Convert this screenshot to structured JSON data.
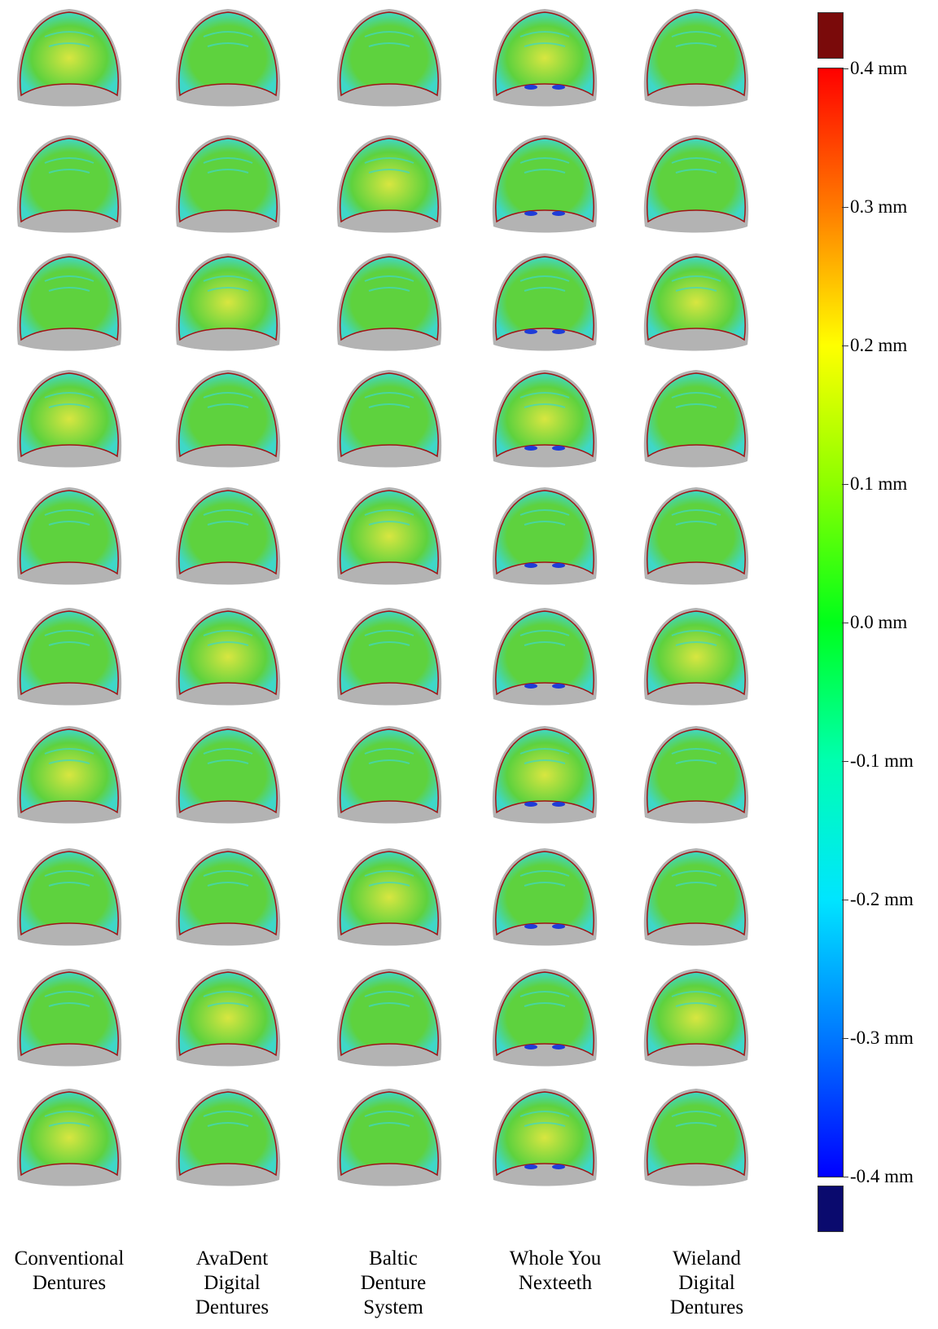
{
  "columns": [
    {
      "lines": [
        "Conventional",
        "Dentures"
      ]
    },
    {
      "lines": [
        "AvaDent",
        "Digital",
        "Dentures"
      ]
    },
    {
      "lines": [
        "Baltic",
        "Denture",
        "System"
      ]
    },
    {
      "lines": [
        "Whole You",
        "Nexteeth"
      ]
    },
    {
      "lines": [
        "Wieland",
        "Digital",
        "Dentures"
      ]
    }
  ],
  "rows": 10,
  "scale": {
    "ticks": [
      "0.4 mm",
      "0.3 mm",
      "0.2 mm",
      "0.1 mm",
      "0.0 mm",
      "-0.1 mm",
      "-0.2 mm",
      "-0.3 mm",
      "-0.4 mm"
    ],
    "over_color": "#7a0a0a",
    "under_color": "#0a0a6e",
    "gradient": [
      "#ff0000",
      "#ff7a00",
      "#ffff00",
      "#8cff00",
      "#00ff1a",
      "#00ffb0",
      "#00e5ff",
      "#0077ff",
      "#0000ff"
    ]
  },
  "colors": {
    "tissue_base": "#b3b3b3",
    "surface_main": "#5ed23e",
    "surface_warm": "#d8e640",
    "surface_cool": "#3fd7c8",
    "edge_warm": "#a01515",
    "edge_cool": "#1e3cd8"
  }
}
